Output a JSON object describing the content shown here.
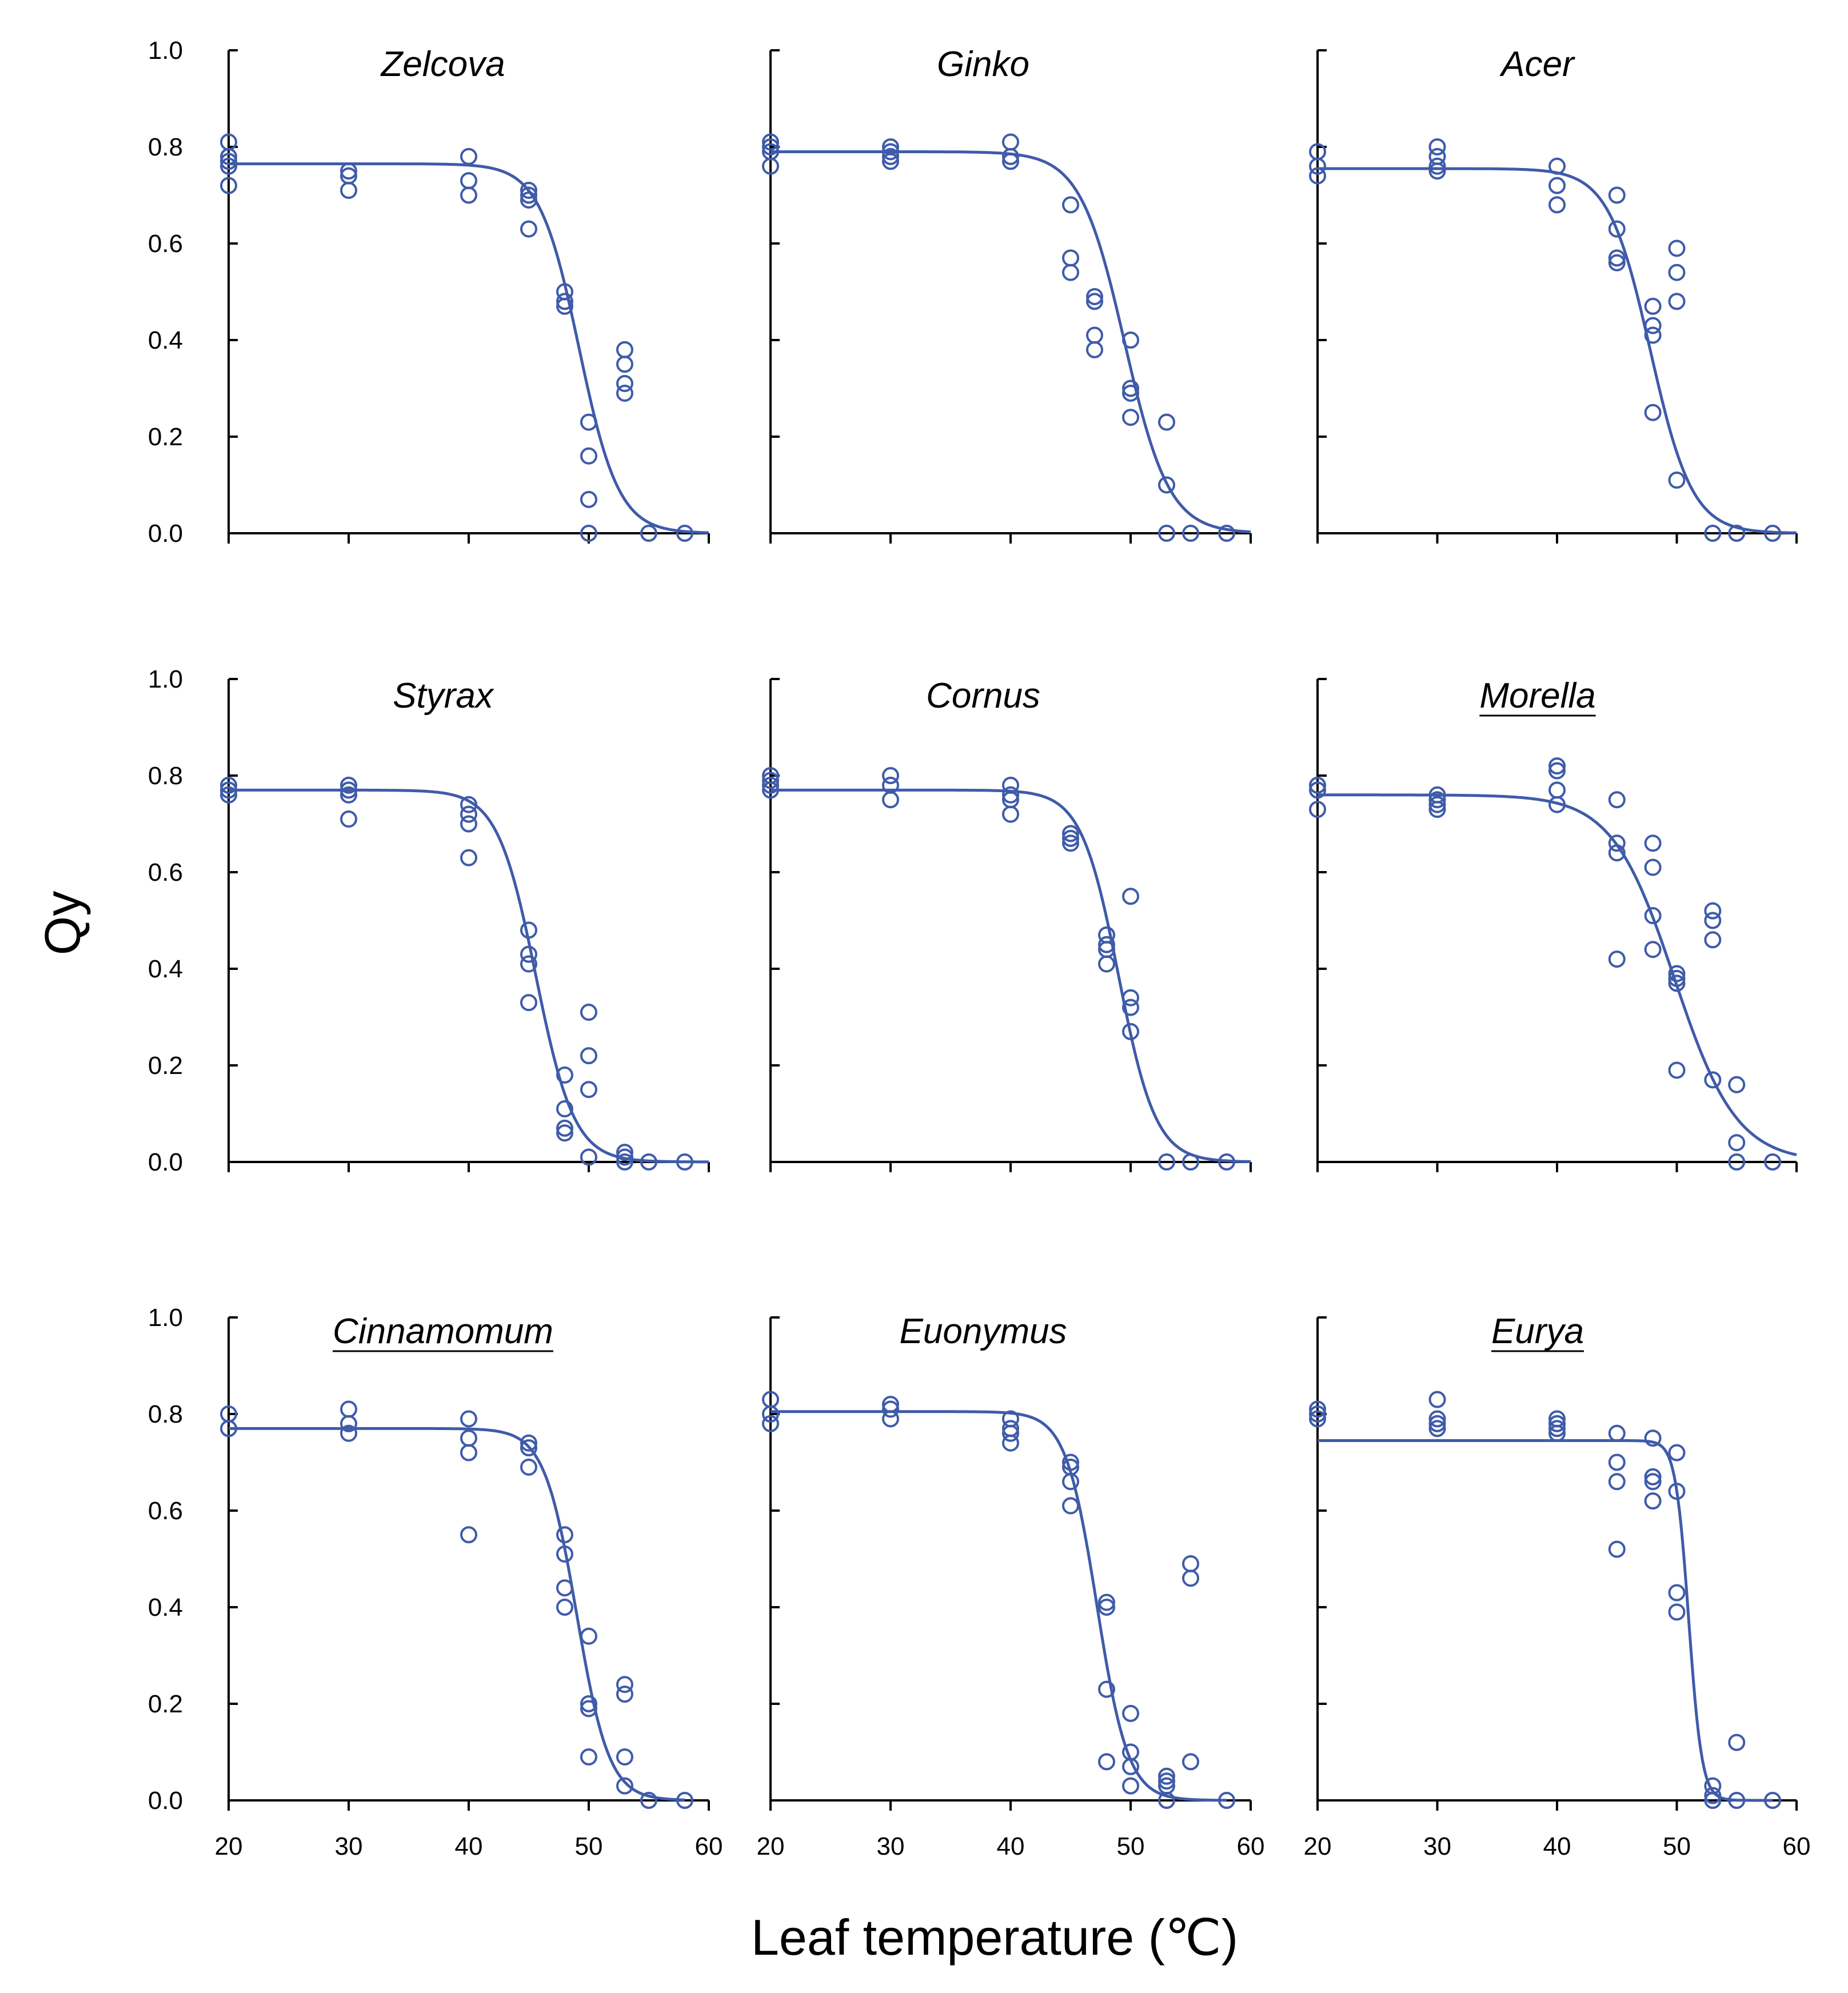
{
  "figure": {
    "y_axis_label": "Qy",
    "x_axis_label": "Leaf temperature (℃)",
    "colors": {
      "series": "#3f5ba9",
      "axis": "#000000"
    }
  },
  "chart_data": [
    {
      "type": "scatter",
      "title": "Zelcova",
      "title_underline": false,
      "xlim": [
        20,
        60
      ],
      "ylim": [
        0,
        1
      ],
      "xticks": [
        "20",
        "30",
        "40",
        "50",
        "60"
      ],
      "yticks": [
        "0.0",
        "0.2",
        "0.4",
        "0.6",
        "0.8",
        "1.0"
      ],
      "points": [
        [
          20,
          0.81
        ],
        [
          20,
          0.78
        ],
        [
          20,
          0.77
        ],
        [
          20,
          0.76
        ],
        [
          20,
          0.72
        ],
        [
          30,
          0.75
        ],
        [
          30,
          0.74
        ],
        [
          30,
          0.71
        ],
        [
          40,
          0.78
        ],
        [
          40,
          0.73
        ],
        [
          40,
          0.7
        ],
        [
          45,
          0.71
        ],
        [
          45,
          0.7
        ],
        [
          45,
          0.69
        ],
        [
          45,
          0.63
        ],
        [
          48,
          0.5
        ],
        [
          48,
          0.48
        ],
        [
          48,
          0.47
        ],
        [
          50,
          0.23
        ],
        [
          50,
          0.16
        ],
        [
          50,
          0.07
        ],
        [
          50,
          0.0
        ],
        [
          53,
          0.38
        ],
        [
          53,
          0.35
        ],
        [
          53,
          0.31
        ],
        [
          53,
          0.29
        ],
        [
          55,
          0.0
        ],
        [
          58,
          0.0
        ]
      ],
      "fit": {
        "ymax": 0.765,
        "t50": 49.2,
        "k": 1.65,
        "x_end": 60
      }
    },
    {
      "type": "scatter",
      "title": "Ginko",
      "title_underline": false,
      "xlim": [
        20,
        60
      ],
      "ylim": [
        0,
        1
      ],
      "xticks": [
        "20",
        "30",
        "40",
        "50",
        "60"
      ],
      "yticks": [
        "0.0",
        "0.2",
        "0.4",
        "0.6",
        "0.8",
        "1.0"
      ],
      "points": [
        [
          20,
          0.81
        ],
        [
          20,
          0.8
        ],
        [
          20,
          0.79
        ],
        [
          20,
          0.76
        ],
        [
          30,
          0.8
        ],
        [
          30,
          0.79
        ],
        [
          30,
          0.78
        ],
        [
          30,
          0.77
        ],
        [
          40,
          0.81
        ],
        [
          40,
          0.78
        ],
        [
          40,
          0.77
        ],
        [
          45,
          0.68
        ],
        [
          45,
          0.57
        ],
        [
          45,
          0.54
        ],
        [
          47,
          0.49
        ],
        [
          47,
          0.48
        ],
        [
          47,
          0.41
        ],
        [
          47,
          0.38
        ],
        [
          50,
          0.4
        ],
        [
          50,
          0.3
        ],
        [
          50,
          0.29
        ],
        [
          50,
          0.24
        ],
        [
          53,
          0.23
        ],
        [
          53,
          0.1
        ],
        [
          53,
          0.0
        ],
        [
          55,
          0.0
        ],
        [
          58,
          0.0
        ]
      ],
      "fit": {
        "ymax": 0.79,
        "t50": 49.5,
        "k": 1.85,
        "x_end": 60
      }
    },
    {
      "type": "scatter",
      "title": "Acer",
      "title_underline": false,
      "xlim": [
        20,
        60
      ],
      "ylim": [
        0,
        1
      ],
      "xticks": [
        "20",
        "30",
        "40",
        "50",
        "60"
      ],
      "yticks": [
        "0.0",
        "0.2",
        "0.4",
        "0.6",
        "0.8",
        "1.0"
      ],
      "points": [
        [
          20,
          0.79
        ],
        [
          20,
          0.76
        ],
        [
          20,
          0.74
        ],
        [
          30,
          0.8
        ],
        [
          30,
          0.78
        ],
        [
          30,
          0.76
        ],
        [
          30,
          0.75
        ],
        [
          40,
          0.76
        ],
        [
          40,
          0.72
        ],
        [
          40,
          0.68
        ],
        [
          45,
          0.7
        ],
        [
          45,
          0.63
        ],
        [
          45,
          0.57
        ],
        [
          45,
          0.56
        ],
        [
          48,
          0.47
        ],
        [
          48,
          0.43
        ],
        [
          48,
          0.41
        ],
        [
          48,
          0.25
        ],
        [
          50,
          0.59
        ],
        [
          50,
          0.54
        ],
        [
          50,
          0.48
        ],
        [
          50,
          0.11
        ],
        [
          53,
          0.0
        ],
        [
          55,
          0.0
        ],
        [
          58,
          0.0
        ]
      ],
      "fit": {
        "ymax": 0.755,
        "t50": 47.8,
        "k": 1.75,
        "x_end": 60
      }
    },
    {
      "type": "scatter",
      "title": "Styrax",
      "title_underline": false,
      "xlim": [
        20,
        60
      ],
      "ylim": [
        0,
        1
      ],
      "xticks": [
        "20",
        "30",
        "40",
        "50",
        "60"
      ],
      "yticks": [
        "0.0",
        "0.2",
        "0.4",
        "0.6",
        "0.8",
        "1.0"
      ],
      "points": [
        [
          20,
          0.78
        ],
        [
          20,
          0.77
        ],
        [
          20,
          0.76
        ],
        [
          30,
          0.78
        ],
        [
          30,
          0.77
        ],
        [
          30,
          0.76
        ],
        [
          30,
          0.71
        ],
        [
          40,
          0.74
        ],
        [
          40,
          0.72
        ],
        [
          40,
          0.7
        ],
        [
          40,
          0.63
        ],
        [
          45,
          0.48
        ],
        [
          45,
          0.43
        ],
        [
          45,
          0.41
        ],
        [
          45,
          0.33
        ],
        [
          48,
          0.18
        ],
        [
          48,
          0.11
        ],
        [
          48,
          0.07
        ],
        [
          48,
          0.06
        ],
        [
          50,
          0.31
        ],
        [
          50,
          0.22
        ],
        [
          50,
          0.15
        ],
        [
          50,
          0.01
        ],
        [
          53,
          0.02
        ],
        [
          53,
          0.01
        ],
        [
          53,
          0.0
        ],
        [
          55,
          0.0
        ],
        [
          58,
          0.0
        ]
      ],
      "fit": {
        "ymax": 0.77,
        "t50": 45.6,
        "k": 1.6,
        "x_end": 60
      }
    },
    {
      "type": "scatter",
      "title": "Cornus",
      "title_underline": false,
      "xlim": [
        20,
        60
      ],
      "ylim": [
        0,
        1
      ],
      "xticks": [
        "20",
        "30",
        "40",
        "50",
        "60"
      ],
      "yticks": [
        "0.0",
        "0.2",
        "0.4",
        "0.6",
        "0.8",
        "1.0"
      ],
      "points": [
        [
          20,
          0.8
        ],
        [
          20,
          0.79
        ],
        [
          20,
          0.78
        ],
        [
          20,
          0.77
        ],
        [
          30,
          0.8
        ],
        [
          30,
          0.78
        ],
        [
          30,
          0.75
        ],
        [
          40,
          0.78
        ],
        [
          40,
          0.76
        ],
        [
          40,
          0.75
        ],
        [
          40,
          0.72
        ],
        [
          45,
          0.68
        ],
        [
          45,
          0.67
        ],
        [
          45,
          0.66
        ],
        [
          48,
          0.47
        ],
        [
          48,
          0.45
        ],
        [
          48,
          0.44
        ],
        [
          48,
          0.41
        ],
        [
          50,
          0.55
        ],
        [
          50,
          0.34
        ],
        [
          50,
          0.32
        ],
        [
          50,
          0.27
        ],
        [
          53,
          0.0
        ],
        [
          55,
          0.0
        ],
        [
          58,
          0.0
        ]
      ],
      "fit": {
        "ymax": 0.77,
        "t50": 49.0,
        "k": 1.55,
        "x_end": 60
      }
    },
    {
      "type": "scatter",
      "title": "Morella",
      "title_underline": true,
      "xlim": [
        20,
        60
      ],
      "ylim": [
        0,
        1
      ],
      "xticks": [
        "20",
        "30",
        "40",
        "50",
        "60"
      ],
      "yticks": [
        "0.0",
        "0.2",
        "0.4",
        "0.6",
        "0.8",
        "1.0"
      ],
      "points": [
        [
          20,
          0.78
        ],
        [
          20,
          0.77
        ],
        [
          20,
          0.73
        ],
        [
          30,
          0.76
        ],
        [
          30,
          0.75
        ],
        [
          30,
          0.74
        ],
        [
          30,
          0.73
        ],
        [
          40,
          0.82
        ],
        [
          40,
          0.81
        ],
        [
          40,
          0.77
        ],
        [
          40,
          0.74
        ],
        [
          45,
          0.75
        ],
        [
          45,
          0.66
        ],
        [
          45,
          0.64
        ],
        [
          45,
          0.42
        ],
        [
          48,
          0.66
        ],
        [
          48,
          0.61
        ],
        [
          48,
          0.51
        ],
        [
          48,
          0.44
        ],
        [
          50,
          0.39
        ],
        [
          50,
          0.38
        ],
        [
          50,
          0.37
        ],
        [
          50,
          0.19
        ],
        [
          53,
          0.52
        ],
        [
          53,
          0.5
        ],
        [
          53,
          0.46
        ],
        [
          53,
          0.17
        ],
        [
          55,
          0.16
        ],
        [
          55,
          0.04
        ],
        [
          55,
          0.0
        ],
        [
          58,
          0.0
        ]
      ],
      "fit": {
        "ymax": 0.76,
        "t50": 49.8,
        "k": 2.6,
        "x_end": 60
      }
    },
    {
      "type": "scatter",
      "title": "Cinnamomum",
      "title_underline": true,
      "xlim": [
        20,
        60
      ],
      "ylim": [
        0,
        1
      ],
      "xticks": [
        "20",
        "30",
        "40",
        "50",
        "60"
      ],
      "yticks": [
        "0.0",
        "0.2",
        "0.4",
        "0.6",
        "0.8",
        "1.0"
      ],
      "points": [
        [
          20,
          0.8
        ],
        [
          20,
          0.77
        ],
        [
          30,
          0.81
        ],
        [
          30,
          0.78
        ],
        [
          30,
          0.76
        ],
        [
          40,
          0.79
        ],
        [
          40,
          0.75
        ],
        [
          40,
          0.72
        ],
        [
          40,
          0.55
        ],
        [
          45,
          0.74
        ],
        [
          45,
          0.73
        ],
        [
          45,
          0.69
        ],
        [
          48,
          0.55
        ],
        [
          48,
          0.51
        ],
        [
          48,
          0.44
        ],
        [
          48,
          0.4
        ],
        [
          50,
          0.34
        ],
        [
          50,
          0.2
        ],
        [
          50,
          0.19
        ],
        [
          50,
          0.09
        ],
        [
          53,
          0.24
        ],
        [
          53,
          0.22
        ],
        [
          53,
          0.09
        ],
        [
          53,
          0.03
        ],
        [
          55,
          0.0
        ],
        [
          58,
          0.0
        ]
      ],
      "fit": {
        "ymax": 0.77,
        "t50": 49.0,
        "k": 1.35,
        "x_end": 58
      }
    },
    {
      "type": "scatter",
      "title": "Euonymus",
      "title_underline": false,
      "xlim": [
        20,
        60
      ],
      "ylim": [
        0,
        1
      ],
      "xticks": [
        "20",
        "30",
        "40",
        "50",
        "60"
      ],
      "yticks": [
        "0.0",
        "0.2",
        "0.4",
        "0.6",
        "0.8",
        "1.0"
      ],
      "points": [
        [
          20,
          0.83
        ],
        [
          20,
          0.8
        ],
        [
          20,
          0.78
        ],
        [
          30,
          0.82
        ],
        [
          30,
          0.81
        ],
        [
          30,
          0.79
        ],
        [
          40,
          0.79
        ],
        [
          40,
          0.77
        ],
        [
          40,
          0.76
        ],
        [
          40,
          0.74
        ],
        [
          45,
          0.7
        ],
        [
          45,
          0.69
        ],
        [
          45,
          0.66
        ],
        [
          45,
          0.61
        ],
        [
          48,
          0.41
        ],
        [
          48,
          0.4
        ],
        [
          48,
          0.23
        ],
        [
          48,
          0.08
        ],
        [
          50,
          0.18
        ],
        [
          50,
          0.1
        ],
        [
          50,
          0.07
        ],
        [
          50,
          0.03
        ],
        [
          53,
          0.05
        ],
        [
          53,
          0.04
        ],
        [
          53,
          0.03
        ],
        [
          53,
          0.0
        ],
        [
          55,
          0.49
        ],
        [
          55,
          0.46
        ],
        [
          55,
          0.08
        ],
        [
          58,
          0.0
        ]
      ],
      "fit": {
        "ymax": 0.805,
        "t50": 47.2,
        "k": 1.3,
        "x_end": 58
      }
    },
    {
      "type": "scatter",
      "title": "Eurya",
      "title_underline": true,
      "xlim": [
        20,
        60
      ],
      "ylim": [
        0,
        1
      ],
      "xticks": [
        "20",
        "30",
        "40",
        "50",
        "60"
      ],
      "yticks": [
        "0.0",
        "0.2",
        "0.4",
        "0.6",
        "0.8",
        "1.0"
      ],
      "points": [
        [
          20,
          0.81
        ],
        [
          20,
          0.8
        ],
        [
          20,
          0.79
        ],
        [
          30,
          0.83
        ],
        [
          30,
          0.79
        ],
        [
          30,
          0.78
        ],
        [
          30,
          0.77
        ],
        [
          40,
          0.79
        ],
        [
          40,
          0.78
        ],
        [
          40,
          0.77
        ],
        [
          40,
          0.76
        ],
        [
          45,
          0.76
        ],
        [
          45,
          0.7
        ],
        [
          45,
          0.66
        ],
        [
          45,
          0.52
        ],
        [
          48,
          0.75
        ],
        [
          48,
          0.67
        ],
        [
          48,
          0.66
        ],
        [
          48,
          0.62
        ],
        [
          50,
          0.72
        ],
        [
          50,
          0.64
        ],
        [
          50,
          0.43
        ],
        [
          50,
          0.39
        ],
        [
          53,
          0.03
        ],
        [
          53,
          0.01
        ],
        [
          53,
          0.0
        ],
        [
          55,
          0.12
        ],
        [
          55,
          0.0
        ],
        [
          58,
          0.0
        ]
      ],
      "fit": {
        "ymax": 0.745,
        "t50": 51.0,
        "k": 0.55,
        "x_end": 58
      }
    }
  ]
}
